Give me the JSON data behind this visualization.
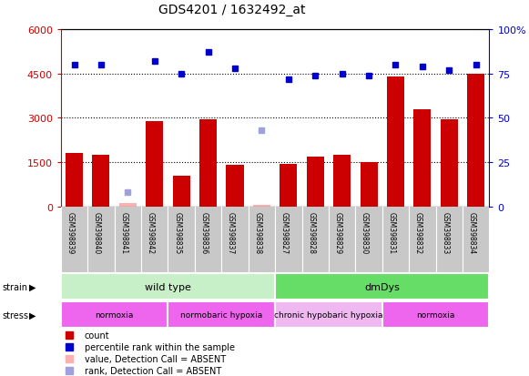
{
  "title": "GDS4201 / 1632492_at",
  "samples": [
    "GSM398839",
    "GSM398840",
    "GSM398841",
    "GSM398842",
    "GSM398835",
    "GSM398836",
    "GSM398837",
    "GSM398838",
    "GSM398827",
    "GSM398828",
    "GSM398829",
    "GSM398830",
    "GSM398831",
    "GSM398832",
    "GSM398833",
    "GSM398834"
  ],
  "counts": [
    1800,
    1750,
    100,
    2900,
    1050,
    2950,
    1400,
    50,
    1450,
    1700,
    1750,
    1500,
    4400,
    3300,
    2950,
    4500
  ],
  "absent_counts": [
    false,
    false,
    true,
    false,
    false,
    false,
    false,
    true,
    false,
    false,
    false,
    false,
    false,
    false,
    false,
    false
  ],
  "percentile_ranks": [
    80,
    80,
    null,
    82,
    75,
    87,
    78,
    null,
    72,
    74,
    75,
    74,
    80,
    79,
    77,
    80
  ],
  "absent_rank_vals": [
    null,
    null,
    8,
    null,
    null,
    null,
    null,
    43,
    null,
    null,
    null,
    null,
    null,
    null,
    null,
    null
  ],
  "ylim_left": [
    0,
    6000
  ],
  "ylim_right": [
    0,
    100
  ],
  "yticks_left": [
    0,
    1500,
    3000,
    4500,
    6000
  ],
  "yticks_right": [
    0,
    25,
    50,
    75,
    100
  ],
  "strain_groups": [
    {
      "label": "wild type",
      "start": 0,
      "end": 8,
      "color": "#C8F0C8"
    },
    {
      "label": "dmDys",
      "start": 8,
      "end": 16,
      "color": "#66DD66"
    }
  ],
  "stress_groups": [
    {
      "label": "normoxia",
      "start": 0,
      "end": 4,
      "color": "#EE66EE"
    },
    {
      "label": "normobaric hypoxia",
      "start": 4,
      "end": 8,
      "color": "#EE66EE"
    },
    {
      "label": "chronic hypobaric hypoxia",
      "start": 8,
      "end": 12,
      "color": "#F0B8F0"
    },
    {
      "label": "normoxia",
      "start": 12,
      "end": 16,
      "color": "#EE66EE"
    }
  ],
  "bar_color": "#CC0000",
  "absent_bar_color": "#FFB0B0",
  "dot_color": "#0000CC",
  "absent_dot_color": "#A0A0DD",
  "bg_color": "#FFFFFF",
  "left_axis_color": "#CC0000",
  "right_axis_color": "#0000CC",
  "tick_label_bg": "#C8C8C8"
}
